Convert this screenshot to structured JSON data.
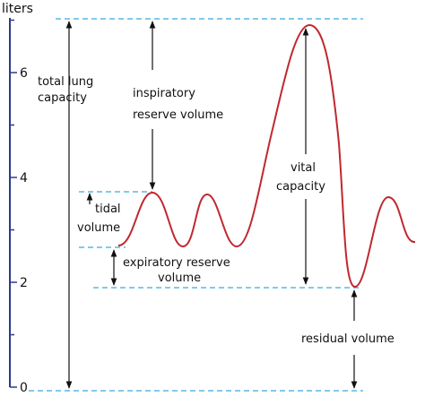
{
  "colors": {
    "axis": "#2e3a8c",
    "curve": "#c0282f",
    "guide": "#3aa9dd",
    "arrow": "#111111",
    "text": "#111111"
  },
  "axis": {
    "unit": "liters",
    "ticks": [
      {
        "value": 0,
        "label": "0"
      },
      {
        "value": 2,
        "label": "2"
      },
      {
        "value": 4,
        "label": "4"
      },
      {
        "value": 6,
        "label": "6"
      }
    ],
    "minor_ticks": [
      1,
      3,
      5,
      7
    ]
  },
  "levels": {
    "total_lung_capacity": 6.9,
    "tidal_top": 3.65,
    "tidal_bottom": 2.6,
    "residual": 1.85,
    "zero": 0
  },
  "labels": {
    "total_lung_capacity": [
      "total lung",
      "capacity"
    ],
    "inspiratory_reserve_volume": [
      "inspiratory",
      "reserve volume"
    ],
    "tidal_volume": [
      "tidal",
      "volume"
    ],
    "expiratory_reserve_volume": [
      "expiratory reserve",
      "volume"
    ],
    "vital_capacity": [
      "vital",
      "capacity"
    ],
    "residual_volume": [
      "residual volume"
    ]
  }
}
